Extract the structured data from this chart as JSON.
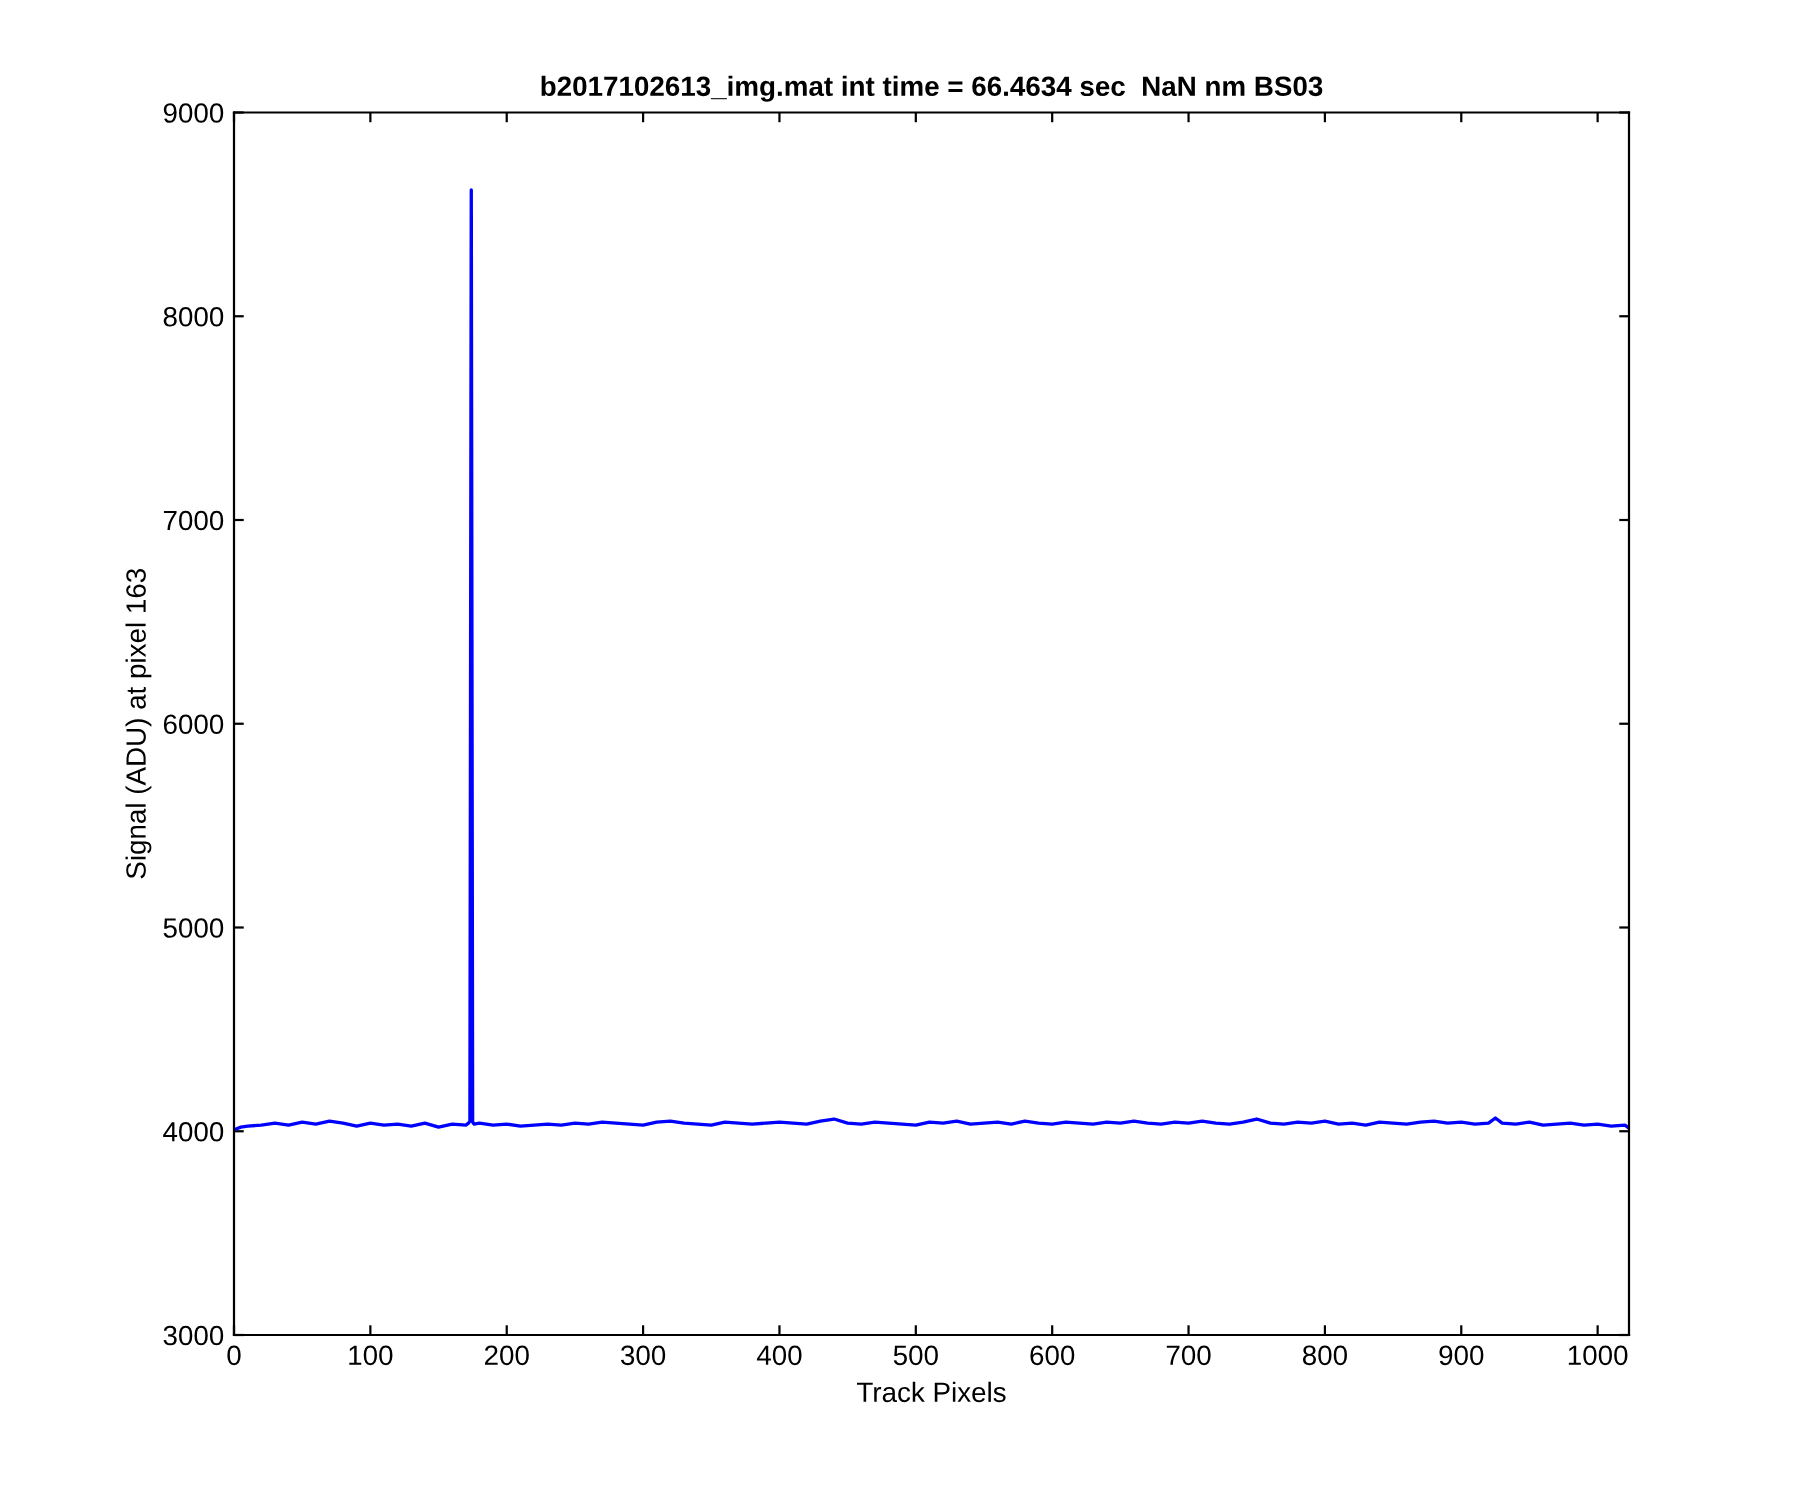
{
  "chart_data": {
    "type": "line",
    "title": "b2017102613_img.mat int time = 66.4634 sec  NaN nm BS03",
    "xlabel": "Track Pixels",
    "ylabel": "Signal (ADU) at pixel 163",
    "series": [
      {
        "color": "#0000ff",
        "x": [
          1,
          5,
          10,
          20,
          30,
          40,
          50,
          60,
          70,
          80,
          90,
          100,
          110,
          120,
          130,
          140,
          150,
          160,
          170,
          172,
          173,
          174,
          175,
          176,
          180,
          190,
          200,
          210,
          220,
          230,
          240,
          250,
          260,
          270,
          280,
          290,
          300,
          310,
          320,
          330,
          340,
          350,
          360,
          370,
          380,
          390,
          400,
          410,
          420,
          430,
          440,
          450,
          460,
          470,
          480,
          490,
          500,
          510,
          520,
          530,
          540,
          550,
          560,
          570,
          580,
          590,
          600,
          610,
          620,
          630,
          640,
          650,
          660,
          670,
          680,
          690,
          700,
          710,
          720,
          730,
          740,
          750,
          760,
          770,
          780,
          790,
          800,
          810,
          820,
          830,
          840,
          850,
          860,
          870,
          880,
          890,
          900,
          910,
          920,
          925,
          930,
          940,
          950,
          960,
          970,
          980,
          990,
          1000,
          1010,
          1020,
          1023
        ],
        "values": [
          4010,
          4020,
          4025,
          4030,
          4040,
          4030,
          4045,
          4035,
          4050,
          4040,
          4025,
          4040,
          4030,
          4035,
          4025,
          4040,
          4020,
          4035,
          4030,
          4040,
          4050,
          8620,
          4045,
          4035,
          4040,
          4030,
          4035,
          4025,
          4030,
          4035,
          4030,
          4040,
          4035,
          4045,
          4040,
          4035,
          4030,
          4045,
          4050,
          4040,
          4035,
          4030,
          4045,
          4040,
          4035,
          4040,
          4045,
          4040,
          4035,
          4050,
          4060,
          4040,
          4035,
          4045,
          4040,
          4035,
          4030,
          4045,
          4040,
          4050,
          4035,
          4040,
          4045,
          4035,
          4050,
          4040,
          4035,
          4045,
          4040,
          4035,
          4045,
          4040,
          4050,
          4040,
          4035,
          4045,
          4040,
          4050,
          4040,
          4035,
          4045,
          4060,
          4040,
          4035,
          4045,
          4040,
          4050,
          4035,
          4040,
          4030,
          4045,
          4040,
          4035,
          4045,
          4050,
          4040,
          4045,
          4035,
          4040,
          4065,
          4040,
          4035,
          4045,
          4030,
          4035,
          4040,
          4030,
          4035,
          4025,
          4030,
          4015
        ]
      }
    ],
    "xlim": [
      0,
      1023
    ],
    "ylim": [
      3000,
      9000
    ],
    "xticks": [
      0,
      100,
      200,
      300,
      400,
      500,
      600,
      700,
      800,
      900,
      1000
    ],
    "yticks": [
      3000,
      4000,
      5000,
      6000,
      7000,
      8000,
      9000
    ],
    "grid": false,
    "legend": false,
    "marker": "none",
    "line_style": "solid"
  }
}
